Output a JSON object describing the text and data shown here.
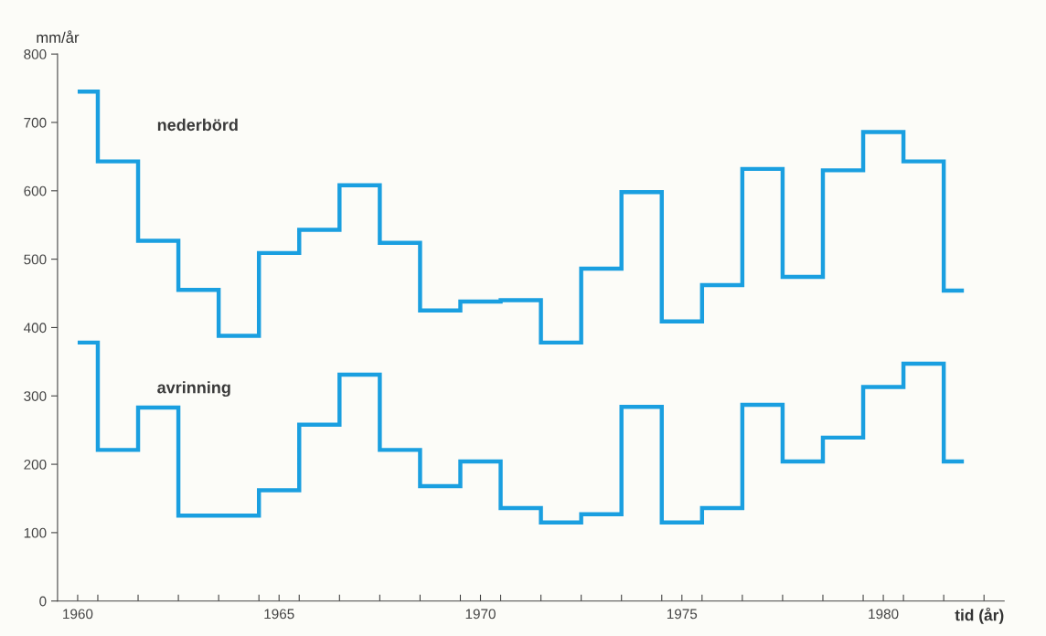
{
  "chart_data": {
    "type": "step",
    "xlabel": "tid (år)",
    "ylabel": "mm/år",
    "x": [
      1960,
      1961,
      1962,
      1963,
      1964,
      1965,
      1966,
      1967,
      1968,
      1969,
      1970,
      1971,
      1972,
      1973,
      1974,
      1975,
      1976,
      1977,
      1978,
      1979,
      1980,
      1981,
      1982
    ],
    "series": [
      {
        "name": "nederbörd",
        "color": "#1a9fe0",
        "values": [
          745,
          643,
          527,
          455,
          388,
          509,
          543,
          608,
          524,
          425,
          438,
          440,
          378,
          486,
          598,
          409,
          462,
          632,
          474,
          630,
          686,
          643,
          454
        ]
      },
      {
        "name": "avrinning",
        "color": "#1a9fe0",
        "values": [
          378,
          221,
          283,
          125,
          125,
          162,
          258,
          331,
          221,
          168,
          204,
          136,
          115,
          127,
          284,
          115,
          136,
          287,
          204,
          239,
          313,
          347,
          204
        ]
      }
    ],
    "xlim": [
      1959.5,
      1983
    ],
    "xticks": [
      {
        "value": 1960,
        "label": "1960"
      },
      {
        "value": 1965,
        "label": "1965"
      },
      {
        "value": 1970,
        "label": "1970"
      },
      {
        "value": 1975,
        "label": "1975"
      },
      {
        "value": 1980,
        "label": "1980"
      },
      {
        "value": 1960.5,
        "label": null
      },
      {
        "value": 1961.5,
        "label": null
      },
      {
        "value": 1962.5,
        "label": null
      },
      {
        "value": 1963.5,
        "label": null
      },
      {
        "value": 1964.5,
        "label": null
      },
      {
        "value": 1965.5,
        "label": null
      },
      {
        "value": 1966.5,
        "label": null
      },
      {
        "value": 1967.5,
        "label": null
      },
      {
        "value": 1968.5,
        "label": null
      },
      {
        "value": 1969.5,
        "label": null
      },
      {
        "value": 1970.5,
        "label": null
      },
      {
        "value": 1971.5,
        "label": null
      },
      {
        "value": 1972.5,
        "label": null
      },
      {
        "value": 1973.5,
        "label": null
      },
      {
        "value": 1974.5,
        "label": null
      },
      {
        "value": 1975.5,
        "label": null
      },
      {
        "value": 1976.5,
        "label": null
      },
      {
        "value": 1977.5,
        "label": null
      },
      {
        "value": 1978.5,
        "label": null
      },
      {
        "value": 1979.5,
        "label": null
      },
      {
        "value": 1980.5,
        "label": null
      },
      {
        "value": 1981.5,
        "label": null
      },
      {
        "value": 1982.5,
        "label": null
      }
    ],
    "ylim": [
      0,
      800
    ],
    "yticks": [
      0,
      100,
      200,
      300,
      400,
      500,
      600,
      700,
      800
    ],
    "grid": false,
    "legend": false
  }
}
